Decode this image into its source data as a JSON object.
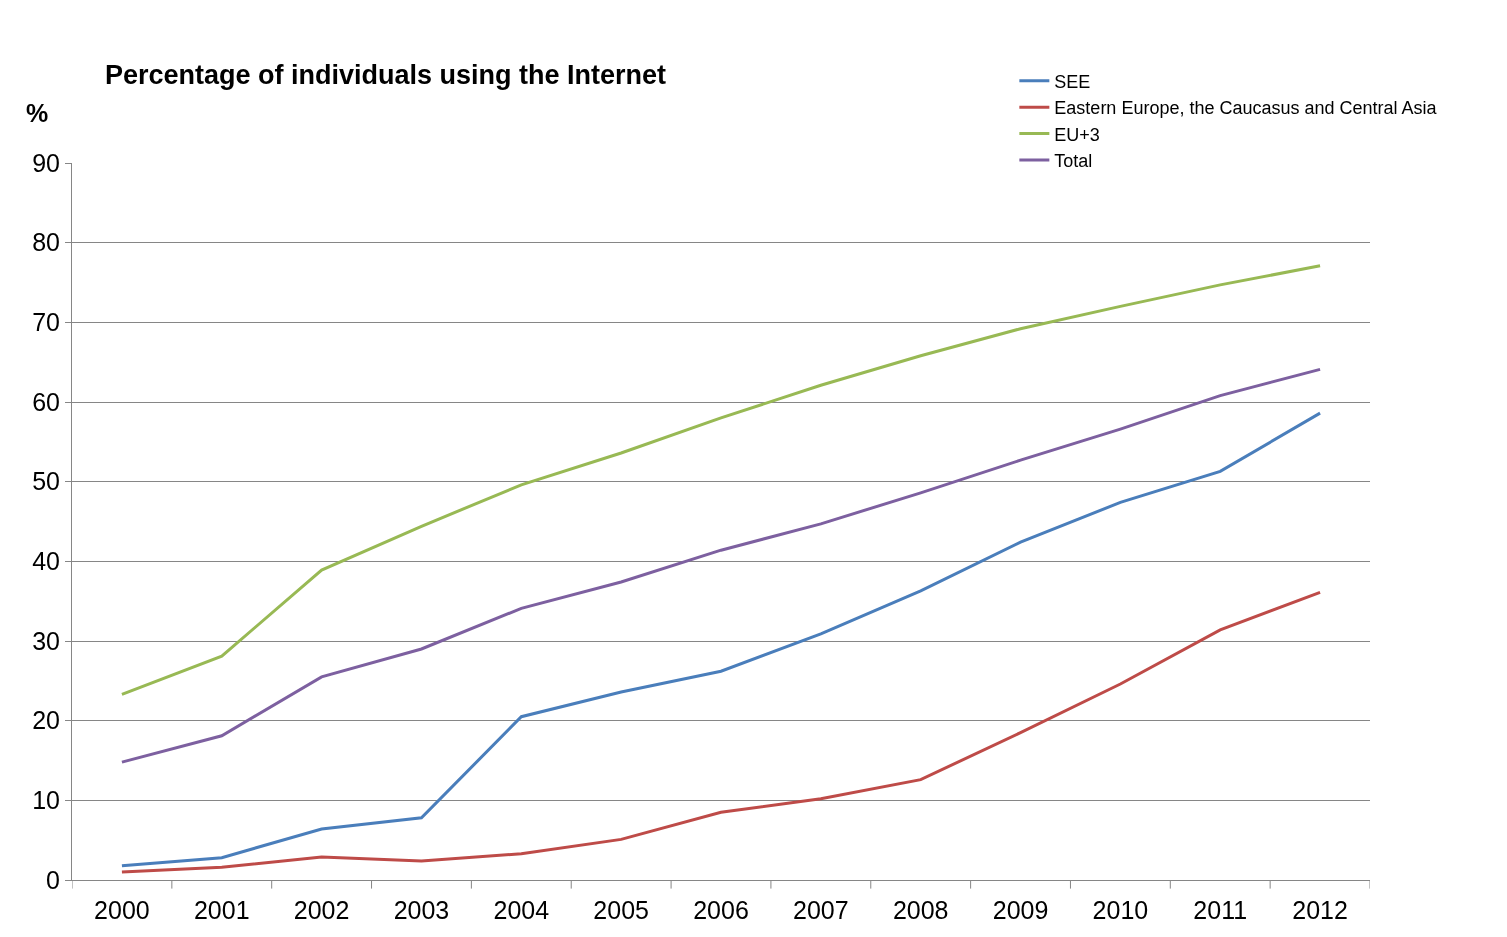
{
  "chart_data": {
    "type": "line",
    "title": "Percentage of individuals using the Internet",
    "ylabel": "%",
    "categories": [
      "2000",
      "2001",
      "2002",
      "2003",
      "2004",
      "2005",
      "2006",
      "2007",
      "2008",
      "2009",
      "2010",
      "2011",
      "2012"
    ],
    "series": [
      {
        "name": "SEE",
        "color": "#4a7ebb",
        "values": [
          1.8,
          2.8,
          6.4,
          7.8,
          20.5,
          23.6,
          26.2,
          30.9,
          36.3,
          42.4,
          47.4,
          51.3,
          58.6
        ]
      },
      {
        "name": "Eastern Europe, the Caucasus and Central Asia",
        "color": "#be4b48",
        "values": [
          1.0,
          1.6,
          2.9,
          2.4,
          3.3,
          5.1,
          8.5,
          10.2,
          12.6,
          18.5,
          24.6,
          31.4,
          36.1
        ]
      },
      {
        "name": "EU+3",
        "color": "#98b954",
        "values": [
          23.3,
          28.1,
          38.9,
          44.4,
          49.6,
          53.6,
          58.0,
          62.1,
          65.8,
          69.2,
          72.0,
          74.7,
          77.1
        ]
      },
      {
        "name": "Total",
        "color": "#7d60a0",
        "values": [
          14.8,
          18.1,
          25.5,
          29.0,
          34.1,
          37.4,
          41.4,
          44.7,
          48.6,
          52.7,
          56.6,
          60.8,
          64.1
        ]
      }
    ],
    "ylim": [
      0,
      90
    ],
    "yticks": [
      0,
      10,
      20,
      30,
      40,
      50,
      60,
      70,
      80,
      90
    ],
    "grid": "y",
    "legend": "top right",
    "marker": "none",
    "line_style": "solid"
  }
}
